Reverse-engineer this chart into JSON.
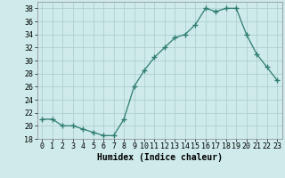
{
  "x": [
    0,
    1,
    2,
    3,
    4,
    5,
    6,
    7,
    8,
    9,
    10,
    11,
    12,
    13,
    14,
    15,
    16,
    17,
    18,
    19,
    20,
    21,
    22,
    23
  ],
  "y": [
    21,
    21,
    20,
    20,
    19.5,
    19,
    18.5,
    18.5,
    21,
    26,
    28.5,
    30.5,
    32,
    33.5,
    34,
    35.5,
    38,
    37.5,
    38,
    38,
    34,
    31,
    29,
    27
  ],
  "line_color": "#2e7d6e",
  "marker": "+",
  "marker_size": 4,
  "xlabel": "Humidex (Indice chaleur)",
  "xlim": [
    -0.5,
    23.5
  ],
  "ylim": [
    18,
    39
  ],
  "yticks": [
    18,
    20,
    22,
    24,
    26,
    28,
    30,
    32,
    34,
    36,
    38
  ],
  "xticks": [
    0,
    1,
    2,
    3,
    4,
    5,
    6,
    7,
    8,
    9,
    10,
    11,
    12,
    13,
    14,
    15,
    16,
    17,
    18,
    19,
    20,
    21,
    22,
    23
  ],
  "background_color": "#ceeaea",
  "grid_color": "#b0d0d0",
  "label_fontsize": 7,
  "tick_fontsize": 6
}
